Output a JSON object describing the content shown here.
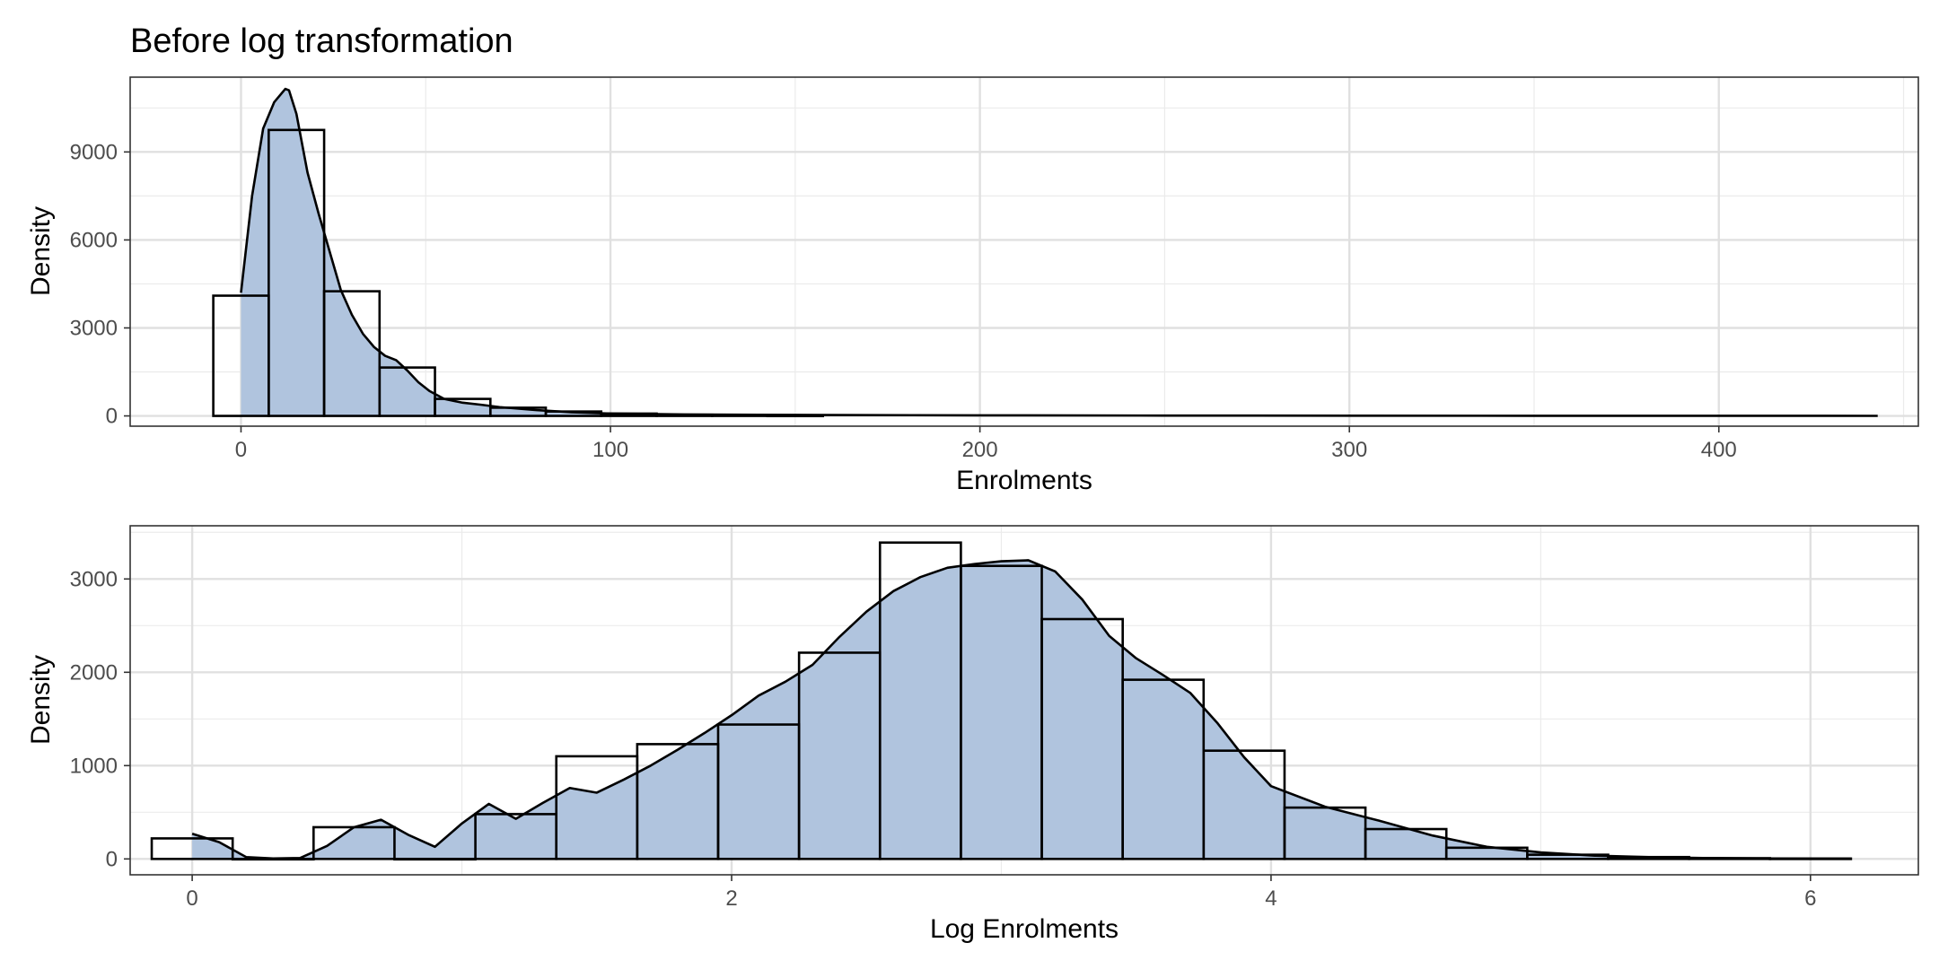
{
  "chart_data": [
    {
      "type": "bar",
      "title": "Before log transformation",
      "xlabel": "Enrolments",
      "ylabel": "Density",
      "xlim": [
        -30,
        454
      ],
      "ylim": [
        -350,
        11550
      ],
      "x_ticks": [
        0,
        100,
        200,
        300,
        400
      ],
      "x_tick_labels": [
        "0",
        "100",
        "200",
        "300",
        "400"
      ],
      "y_ticks": [
        0,
        3000,
        6000,
        9000
      ],
      "y_tick_labels": [
        "0",
        "3000",
        "6000",
        "9000"
      ],
      "grid": true,
      "colors": {
        "fill": "#b0c4de",
        "outline": "#000000"
      },
      "histogram": {
        "bin_starts": [
          -7.5,
          7.5,
          22.5,
          37.5,
          52.5,
          67.5,
          82.5,
          97.5,
          112.5,
          127.5,
          142.5
        ],
        "bin_width": 15,
        "values": [
          4100,
          9750,
          4250,
          1650,
          580,
          280,
          150,
          80,
          40,
          20,
          10
        ]
      },
      "density": {
        "x": [
          0,
          3,
          6,
          9,
          12,
          13,
          15,
          18,
          21,
          24,
          27,
          30,
          33,
          36,
          39,
          42,
          45,
          48,
          51,
          55,
          60,
          65,
          70,
          80,
          90,
          100,
          120,
          140,
          160,
          200,
          250,
          300,
          350,
          400,
          443
        ],
        "y": [
          4200,
          7500,
          9800,
          10700,
          11150,
          11100,
          10300,
          8300,
          6900,
          5600,
          4300,
          3450,
          2800,
          2350,
          2050,
          1900,
          1550,
          1150,
          850,
          580,
          450,
          380,
          300,
          200,
          120,
          80,
          50,
          40,
          30,
          20,
          12,
          8,
          5,
          3,
          2
        ]
      }
    },
    {
      "type": "bar",
      "title": "",
      "xlabel": "Log Enrolments",
      "ylabel": "Density",
      "xlim": [
        -0.23,
        6.4
      ],
      "ylim": [
        -170,
        3570
      ],
      "x_ticks": [
        0,
        2,
        4,
        6
      ],
      "x_tick_labels": [
        "0",
        "2",
        "4",
        "6"
      ],
      "y_ticks": [
        0,
        1000,
        2000,
        3000
      ],
      "y_tick_labels": [
        "0",
        "1000",
        "2000",
        "3000"
      ],
      "grid": true,
      "colors": {
        "fill": "#b0c4de",
        "outline": "#000000"
      },
      "histogram": {
        "bin_starts": [
          -0.15,
          0.15,
          0.45,
          0.75,
          1.05,
          1.35,
          1.65,
          1.95,
          2.25,
          2.55,
          2.85,
          3.15,
          3.45,
          3.75,
          4.05,
          4.35,
          4.65,
          4.95,
          5.25,
          5.55,
          5.85
        ],
        "bin_width": 0.3,
        "values": [
          220,
          0,
          340,
          0,
          480,
          1100,
          1230,
          1440,
          2210,
          3390,
          3140,
          2570,
          1920,
          1160,
          550,
          320,
          120,
          45,
          20,
          8,
          4
        ]
      },
      "density": {
        "x": [
          0,
          0.1,
          0.2,
          0.3,
          0.4,
          0.5,
          0.6,
          0.7,
          0.8,
          0.9,
          1.0,
          1.1,
          1.2,
          1.3,
          1.4,
          1.5,
          1.6,
          1.7,
          1.8,
          1.9,
          2.0,
          2.1,
          2.2,
          2.3,
          2.4,
          2.5,
          2.6,
          2.7,
          2.8,
          2.9,
          3.0,
          3.1,
          3.2,
          3.3,
          3.4,
          3.5,
          3.6,
          3.7,
          3.8,
          3.9,
          4.0,
          4.2,
          4.4,
          4.6,
          4.8,
          5.0,
          5.2,
          5.4,
          5.6,
          5.8,
          6.0,
          6.15
        ],
        "y": [
          270,
          180,
          20,
          5,
          10,
          140,
          340,
          420,
          260,
          130,
          380,
          590,
          430,
          600,
          760,
          710,
          850,
          1000,
          1170,
          1350,
          1540,
          1750,
          1900,
          2080,
          2380,
          2650,
          2870,
          3020,
          3120,
          3160,
          3190,
          3200,
          3080,
          2780,
          2390,
          2150,
          1970,
          1780,
          1460,
          1090,
          780,
          560,
          410,
          250,
          130,
          70,
          35,
          20,
          10,
          5,
          3,
          2
        ]
      }
    }
  ]
}
